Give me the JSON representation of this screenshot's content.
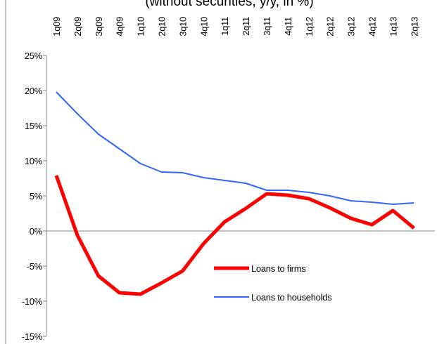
{
  "chart_data": {
    "type": "line",
    "title": "(without securities, y/y, in %)",
    "categories": [
      "1q09",
      "2q09",
      "3q09",
      "4q09",
      "1q10",
      "2q10",
      "3q10",
      "4q10",
      "1q11",
      "2q11",
      "3q11",
      "4q11",
      "1q12",
      "2q12",
      "3q12",
      "4q12",
      "1q13",
      "2q13"
    ],
    "series": [
      {
        "name": "Loans to firms",
        "color": "#ff0000",
        "values": [
          7.9,
          -0.6,
          -6.4,
          -8.8,
          -9.0,
          -7.4,
          -5.7,
          -1.8,
          1.3,
          3.2,
          5.3,
          5.1,
          4.6,
          3.3,
          1.8,
          0.9,
          2.9,
          0.4
        ]
      },
      {
        "name": "Loans to households",
        "color": "#3366ff",
        "values": [
          19.8,
          16.7,
          13.8,
          11.7,
          9.6,
          8.4,
          8.3,
          7.6,
          7.2,
          6.8,
          5.8,
          5.8,
          5.5,
          5.0,
          4.3,
          4.1,
          3.8,
          4.0
        ]
      }
    ],
    "y_ticks": [
      "25%",
      "20%",
      "15%",
      "10%",
      "5%",
      "0%",
      "-5%",
      "-10%",
      "-15%"
    ],
    "ylim": [
      -15,
      25
    ],
    "x_axis_position": "top",
    "grid": false,
    "legend": "bottom-right inside plot"
  }
}
